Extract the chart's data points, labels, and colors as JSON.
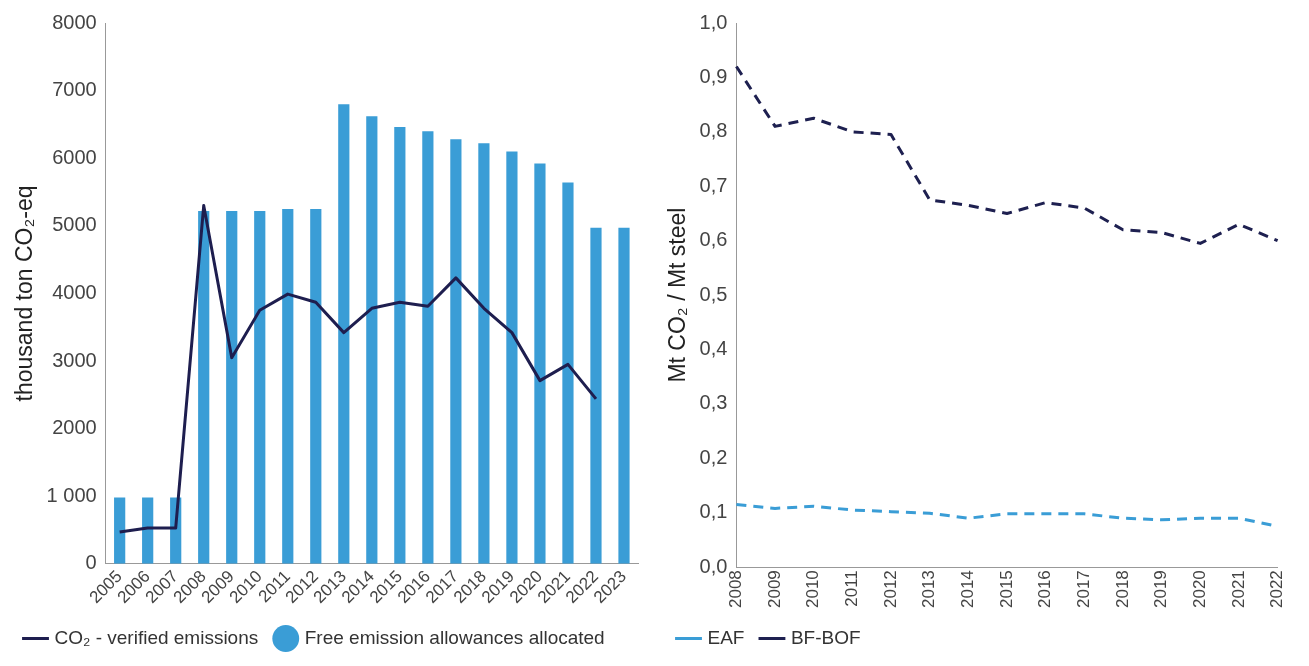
{
  "chart_data": [
    {
      "type": "bar",
      "ylabel": "thousand ton CO₂-eq",
      "categories": [
        "2005",
        "2006",
        "2007",
        "2008",
        "2009",
        "2010",
        "2011",
        "2012",
        "2013",
        "2014",
        "2015",
        "2016",
        "2017",
        "2018",
        "2019",
        "2020",
        "2021",
        "2022",
        "2023"
      ],
      "series": [
        {
          "name": "Free emission allowances allocated",
          "type": "bar",
          "color": "#3a9dd6",
          "values": [
            980,
            980,
            980,
            5220,
            5220,
            5220,
            5250,
            5250,
            6800,
            6620,
            6460,
            6400,
            6280,
            6220,
            6100,
            5920,
            5640,
            4970,
            4970
          ]
        },
        {
          "name": "CO₂ - verified emissions",
          "type": "line",
          "color": "#1e1e4f",
          "values": [
            470,
            530,
            530,
            5300,
            3050,
            3750,
            3990,
            3870,
            3420,
            3780,
            3870,
            3810,
            4230,
            3780,
            3420,
            2710,
            2950,
            2440,
            null
          ]
        }
      ],
      "ylim": [
        0,
        8000
      ],
      "yticks": [
        0,
        {
          "value": 1000,
          "label": "1 000"
        },
        2000,
        3000,
        4000,
        5000,
        6000,
        7000,
        8000
      ],
      "grid": false,
      "legend": "bottom",
      "marker": "none"
    },
    {
      "type": "line",
      "ylabel": "Mt CO₂ / Mt steel",
      "categories": [
        "2008",
        "2009",
        "2010",
        "2011",
        "2012",
        "2013",
        "2014",
        "2015",
        "2016",
        "2017",
        "2018",
        "2019",
        "2020",
        "2021",
        "2022"
      ],
      "series": [
        {
          "name": "EAF",
          "color": "#3a9dd6",
          "values": [
            0.115,
            0.108,
            0.112,
            0.105,
            0.102,
            0.099,
            0.09,
            0.098,
            0.098,
            0.098,
            0.09,
            0.087,
            0.09,
            0.09,
            0.075
          ]
        },
        {
          "name": "BF-BOF",
          "color": "#1e2050",
          "values": [
            0.92,
            0.81,
            0.825,
            0.8,
            0.795,
            0.675,
            0.665,
            0.65,
            0.67,
            0.66,
            0.62,
            0.615,
            0.595,
            0.63,
            0.6
          ]
        }
      ],
      "ylim": [
        0,
        1
      ],
      "yticks": [
        {
          "value": 0,
          "label": "0,0"
        },
        {
          "value": 0.1,
          "label": "0,1"
        },
        {
          "value": 0.2,
          "label": "0,2"
        },
        {
          "value": 0.3,
          "label": "0,3"
        },
        {
          "value": 0.4,
          "label": "0,4"
        },
        {
          "value": 0.5,
          "label": "0,5"
        },
        {
          "value": 0.6,
          "label": "0,6"
        },
        {
          "value": 0.7,
          "label": "0,7"
        },
        {
          "value": 0.8,
          "label": "0,8"
        },
        {
          "value": 0.9,
          "label": "0,9"
        },
        {
          "value": 1,
          "label": "1,0"
        }
      ],
      "grid": false,
      "legend": "bottom",
      "marker": "none",
      "line_style": "dashed"
    }
  ]
}
